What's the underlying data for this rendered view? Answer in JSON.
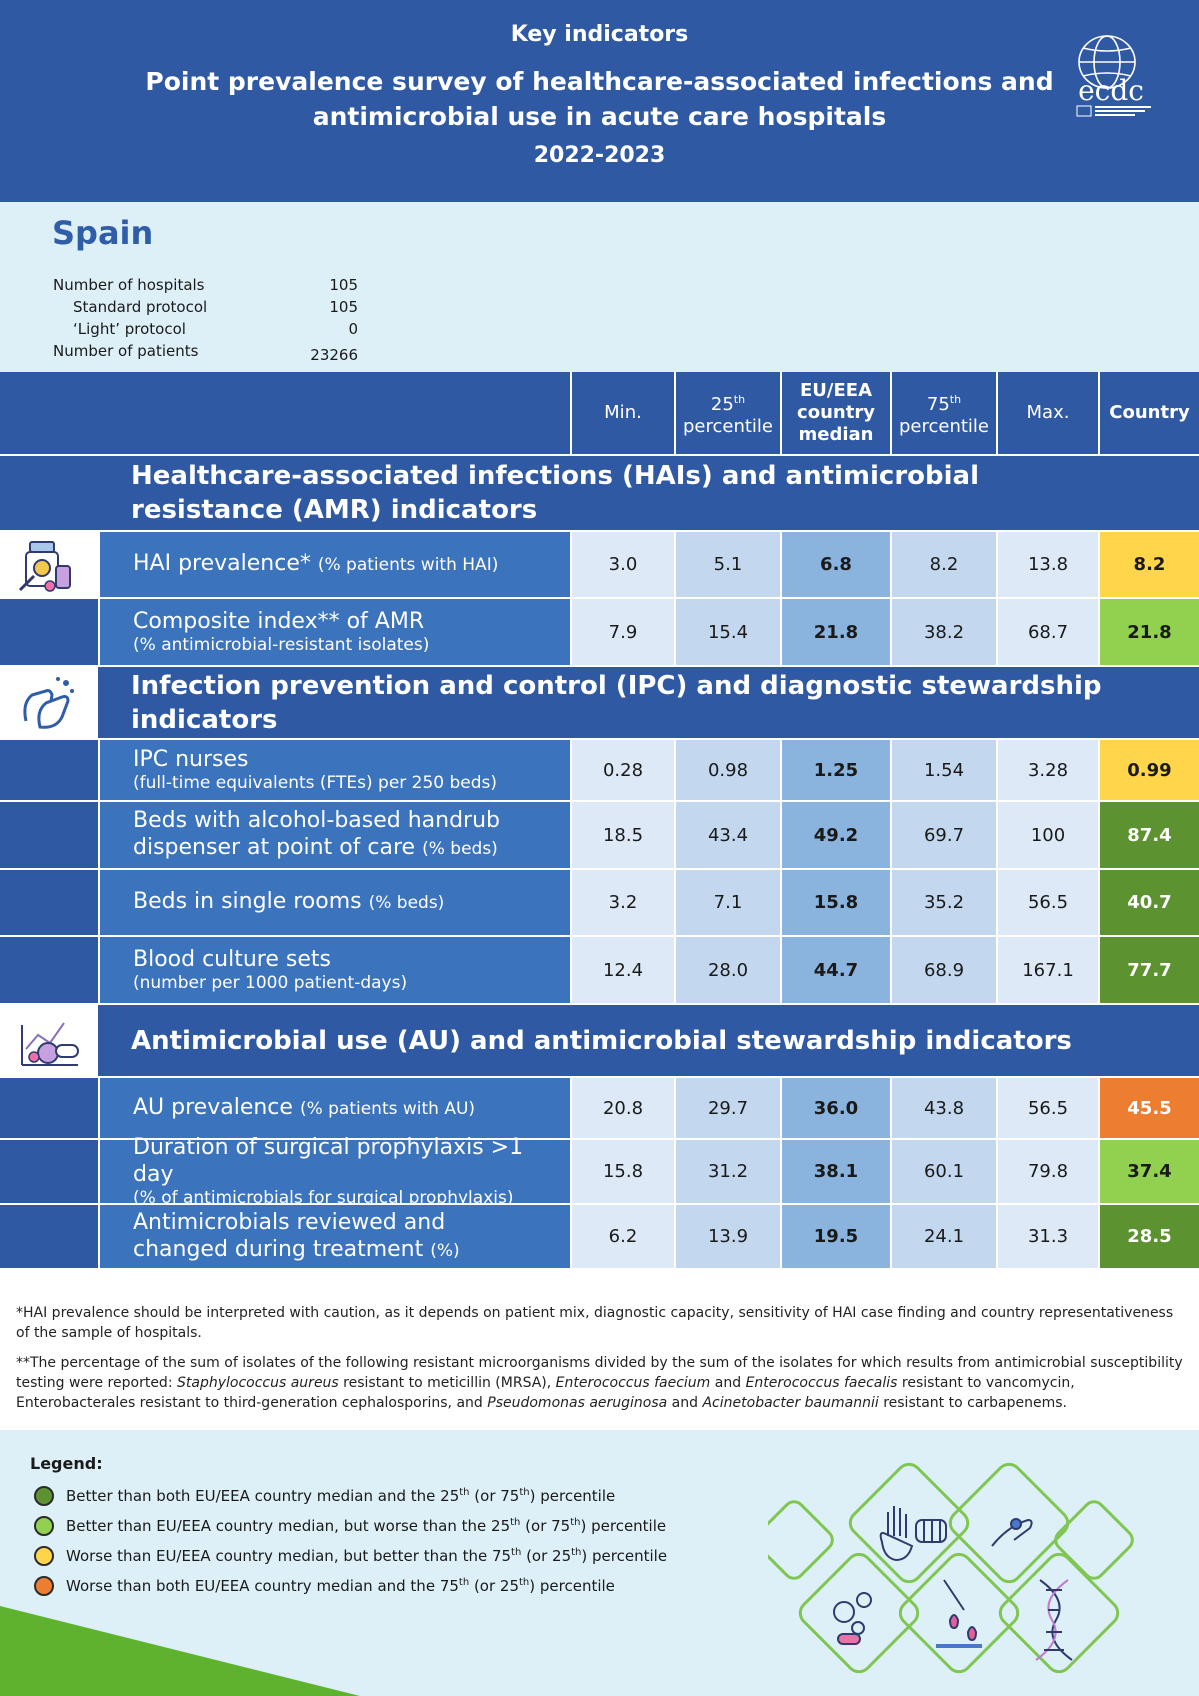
{
  "header": {
    "kicker": "Key indicators",
    "title": "Point prevalence survey of healthcare-associated infections and antimicrobial use in acute care hospitals",
    "years": "2022-2023",
    "logo_text": "ecdc",
    "logo_icon": "ecdc-globe-logo"
  },
  "country": {
    "name": "Spain",
    "stats": [
      {
        "label": "Number of hospitals",
        "value": "105"
      },
      {
        "label": "Standard protocol",
        "value": "105"
      },
      {
        "label": "‘Light’ protocol",
        "value": "0"
      },
      {
        "label": "Number of patients",
        "value": "23266"
      }
    ]
  },
  "table_header": {
    "min": "Min.",
    "p25_num": "25",
    "p25_sup": "th",
    "p25_word": "percentile",
    "median": "EU/EEA country median",
    "p75_num": "75",
    "p75_sup": "th",
    "p75_word": "percentile",
    "max": "Max.",
    "country": "Country"
  },
  "sections": [
    {
      "title": "Healthcare-associated infections (HAIs) and antimicrobial resistance (AMR) indicators",
      "icon": "medication-bottles-icon",
      "rows": [
        {
          "main": "HAI prevalence*",
          "small": "(% patients with HAI)",
          "sub": "",
          "min": "3.0",
          "p25": "5.1",
          "median": "6.8",
          "p75": "8.2",
          "max": "13.8",
          "country": "8.2",
          "status": "yellow"
        },
        {
          "main": "Composite index** of AMR",
          "small": "",
          "sub": "(% antimicrobial-resistant isolates)",
          "min": "7.9",
          "p25": "15.4",
          "median": "21.8",
          "p75": "38.2",
          "max": "68.7",
          "country": "21.8",
          "status": "green-light"
        }
      ]
    },
    {
      "title": "Infection prevention and control (IPC) and diagnostic stewardship indicators",
      "icon": "hand-washing-icon",
      "rows": [
        {
          "main": "IPC nurses",
          "small": "",
          "sub": "(full-time equivalents (FTEs) per 250 beds)",
          "min": "0.28",
          "p25": "0.98",
          "median": "1.25",
          "p75": "1.54",
          "max": "3.28",
          "country": "0.99",
          "status": "yellow"
        },
        {
          "main": "Beds with alcohol-based handrub dispenser at point of care",
          "small": "(% beds)",
          "sub": "",
          "min": "18.5",
          "p25": "43.4",
          "median": "49.2",
          "p75": "69.7",
          "max": "100",
          "country": "87.4",
          "status": "green-dark"
        },
        {
          "main": "Beds in single rooms",
          "small": "(% beds)",
          "sub": "",
          "min": "3.2",
          "p25": "7.1",
          "median": "15.8",
          "p75": "35.2",
          "max": "56.5",
          "country": "40.7",
          "status": "green-dark"
        },
        {
          "main": "Blood culture sets",
          "small": "",
          "sub": "(number per 1000 patient-days)",
          "min": "12.4",
          "p25": "28.0",
          "median": "44.7",
          "p75": "68.9",
          "max": "167.1",
          "country": "77.7",
          "status": "green-dark"
        }
      ]
    },
    {
      "title": "Antimicrobial use (AU) and antimicrobial stewardship indicators",
      "icon": "pills-chart-icon",
      "rows": [
        {
          "main": "AU prevalence",
          "small": "(% patients with AU)",
          "sub": "",
          "min": "20.8",
          "p25": "29.7",
          "median": "36.0",
          "p75": "43.8",
          "max": "56.5",
          "country": "45.5",
          "status": "orange"
        },
        {
          "main": "Duration of surgical prophylaxis >1 day",
          "small": "",
          "sub": "(% of antimicrobials for surgical prophylaxis)",
          "min": "15.8",
          "p25": "31.2",
          "median": "38.1",
          "p75": "60.1",
          "max": "79.8",
          "country": "37.4",
          "status": "green-light"
        },
        {
          "main": "Antimicrobials reviewed and changed during treatment",
          "small": "(%)",
          "sub": "",
          "min": "6.2",
          "p25": "13.9",
          "median": "19.5",
          "p75": "24.1",
          "max": "31.3",
          "country": "28.5",
          "status": "green-dark"
        }
      ]
    }
  ],
  "notes": {
    "note1": "*HAI prevalence should be interpreted with caution, as it depends on patient mix, diagnostic capacity, sensitivity of HAI case finding and country representativeness of the sample of hospitals.",
    "note2_a": "**The percentage of the sum of isolates of the following resistant microorganisms divided by the sum of the isolates for which results from antimicrobial susceptibility testing were reported: ",
    "note2_b": "Staphylococcus aureus",
    "note2_c": " resistant to meticillin (MRSA), ",
    "note2_d": "Enterococcus faecium",
    "note2_e": " and ",
    "note2_f": "Enterococcus faecalis",
    "note2_g": " resistant to vancomycin, Enterobacterales resistant to third-generation cephalosporins, and ",
    "note2_h": "Pseudomonas aeruginosa",
    "note2_i": " and ",
    "note2_j": "Acinetobacter baumannii",
    "note2_k": " resistant to carbapenems."
  },
  "legend": {
    "title": "Legend:",
    "items": [
      {
        "status": "green-dark",
        "a": "Better than both EU/EEA country median and the 25",
        "s1": "th",
        "b": " (or 75",
        "s2": "th",
        "c": ") percentile"
      },
      {
        "status": "green-light",
        "a": "Better than EU/EEA country median, but worse than the 25",
        "s1": "th",
        "b": " (or 75",
        "s2": "th",
        "c": ") percentile"
      },
      {
        "status": "yellow",
        "a": "Worse than EU/EEA country median, but better than the 75",
        "s1": "th",
        "b": " (or 25",
        "s2": "th",
        "c": ") percentile"
      },
      {
        "status": "orange",
        "a": "Worse than both EU/EEA country median and the 75",
        "s1": "th",
        "b": " (or 25",
        "s2": "th",
        "c": ") percentile"
      }
    ],
    "decoration_icons": [
      "hand-stop-icon",
      "fist-icon",
      "pill-in-hand-icon",
      "bacteria-icon",
      "pipette-icon",
      "dna-icon"
    ]
  },
  "colors": {
    "header_blue": "#3059a3",
    "label_blue": "#3b73bd",
    "light_bg": "#def0f7",
    "green-dark": "#5d9231",
    "green-light": "#92d050",
    "yellow": "#ffd54a",
    "orange": "#ed7d31"
  }
}
